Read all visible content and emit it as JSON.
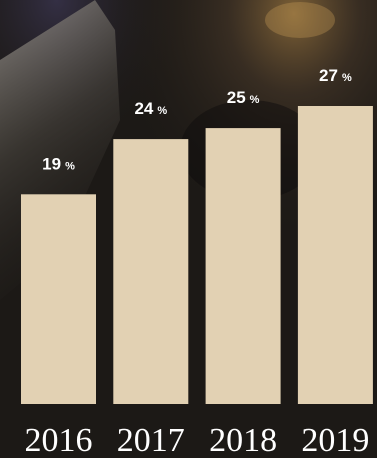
{
  "chart_data": {
    "type": "bar",
    "categories": [
      "2016",
      "2017",
      "2018",
      "2019"
    ],
    "values": [
      19,
      24,
      25,
      27
    ],
    "unit": "%",
    "title": "",
    "xlabel": "",
    "ylabel": "",
    "ylim": [
      0,
      27
    ],
    "grid": false,
    "legend": "none"
  },
  "colors": {
    "bar": "#e2d1b3",
    "value_label": "#ffffff",
    "tick_label": "#ffffff",
    "background": "#1c1916"
  }
}
